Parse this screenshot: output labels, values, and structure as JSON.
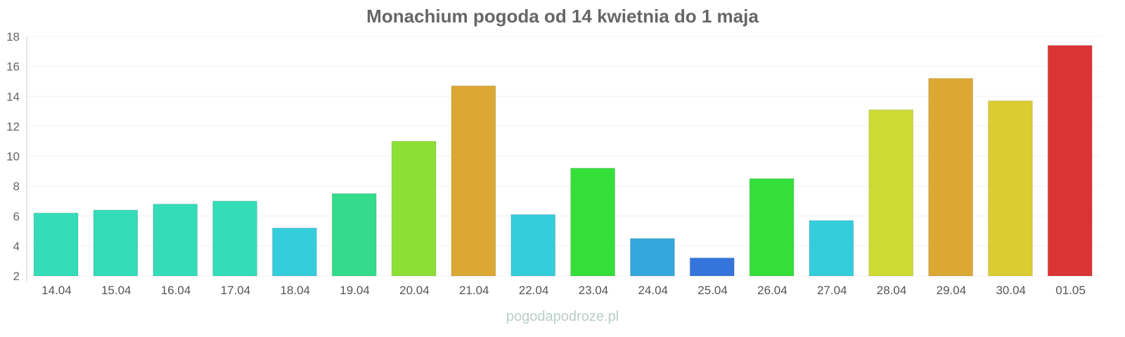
{
  "chart_data": {
    "type": "bar",
    "title": "Monachium pogoda od 14 kwietnia do 1 maja",
    "categories": [
      "14.04",
      "15.04",
      "16.04",
      "17.04",
      "18.04",
      "19.04",
      "20.04",
      "21.04",
      "22.04",
      "23.04",
      "24.04",
      "25.04",
      "26.04",
      "27.04",
      "28.04",
      "29.04",
      "30.04",
      "01.05"
    ],
    "values": [
      6.2,
      6.4,
      6.8,
      7.0,
      5.2,
      7.5,
      11.0,
      14.7,
      6.1,
      9.2,
      4.5,
      3.2,
      8.5,
      5.7,
      13.1,
      15.2,
      13.7,
      17.4
    ],
    "colors": [
      "#34dcb8",
      "#34dcb8",
      "#34dcb8",
      "#34dcb8",
      "#34cddb",
      "#34db8a",
      "#8cdf34",
      "#dba834",
      "#34cddb",
      "#34df3a",
      "#34a6db",
      "#3474db",
      "#34df3a",
      "#34cddb",
      "#cddc34",
      "#dba834",
      "#dbcc34",
      "#db3434"
    ],
    "yticks": [
      2,
      4,
      6,
      8,
      10,
      12,
      14,
      16,
      18
    ],
    "ylim": [
      2,
      18
    ],
    "grid": true,
    "xlabel": "",
    "ylabel": ""
  },
  "watermark": "pogodapodroze.pl"
}
